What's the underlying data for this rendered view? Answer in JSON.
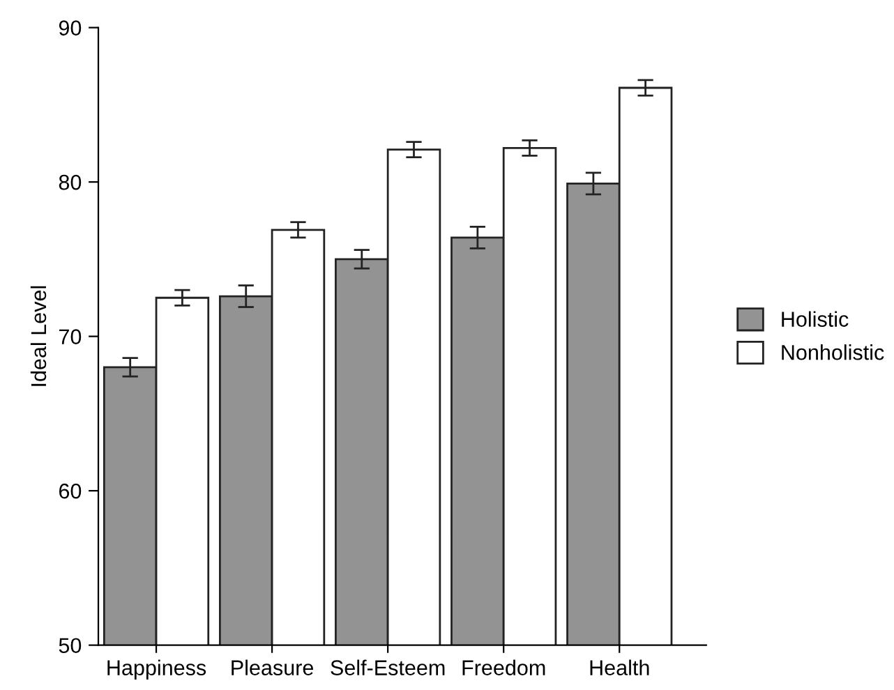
{
  "chart_data": {
    "type": "bar",
    "ylabel": "Ideal Level",
    "categories": [
      "Happiness",
      "Pleasure",
      "Self-Esteem",
      "Freedom",
      "Health"
    ],
    "series": [
      {
        "name": "Holistic",
        "color": "#939393",
        "values": [
          68.0,
          72.6,
          75.0,
          76.4,
          79.9
        ],
        "errors": [
          0.6,
          0.7,
          0.6,
          0.7,
          0.7
        ]
      },
      {
        "name": "Nonholistic",
        "color": "#ffffff",
        "values": [
          72.5,
          76.9,
          82.1,
          82.2,
          86.1
        ],
        "errors": [
          0.5,
          0.5,
          0.5,
          0.5,
          0.5
        ]
      }
    ],
    "ylim": [
      50,
      90
    ],
    "yticks": [
      50,
      60,
      70,
      80,
      90
    ],
    "grid": false,
    "legend": "right"
  }
}
